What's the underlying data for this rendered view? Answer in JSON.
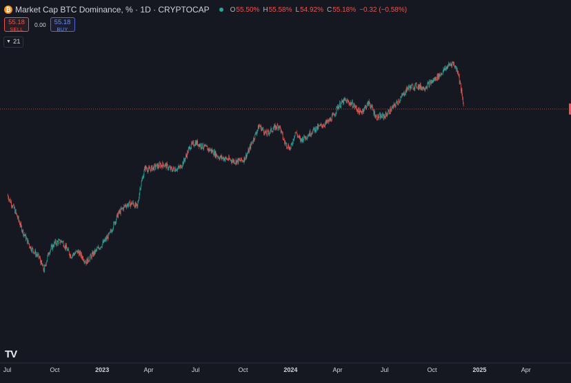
{
  "header": {
    "coin_icon": "bitcoin-icon",
    "title": "Market Cap BTC Dominance, % · 1D · CRYPTOCAP",
    "ohlc": [
      {
        "key": "O",
        "value": "55.50%"
      },
      {
        "key": "H",
        "value": "55.58%"
      },
      {
        "key": "L",
        "value": "54.92%"
      },
      {
        "key": "C",
        "value": "55.18%"
      },
      {
        "key": "",
        "value": "−0.32 (−0.58%)"
      }
    ]
  },
  "trade": {
    "sell_price": "55.18",
    "sell_label": "SELL",
    "spread": "0.00",
    "buy_price": "55.18",
    "buy_label": "BUY"
  },
  "indicators": {
    "toggle_label": "21"
  },
  "colors": {
    "background": "#161821",
    "up": "#26a69a",
    "down": "#ef5350",
    "price_line": "#ef5350",
    "axis_text": "#d1d4dc"
  },
  "chart_data": {
    "type": "candlestick",
    "x_tick_labels": [
      "Jul",
      "Oct",
      "2023",
      "Apr",
      "Jul",
      "Oct",
      "2024",
      "Apr",
      "Jul",
      "Oct",
      "2025",
      "Apr"
    ],
    "current_close": 55.18,
    "y_tick_labels": [],
    "series": [
      {
        "name": "BTC Dominance",
        "points": [
          [
            "2022-07-01",
            47.0
          ],
          [
            "2022-07-15",
            45.6
          ],
          [
            "2022-08-01",
            43.4
          ],
          [
            "2022-08-15",
            42.0
          ],
          [
            "2022-09-01",
            41.0
          ],
          [
            "2022-09-10",
            39.8
          ],
          [
            "2022-09-20",
            41.6
          ],
          [
            "2022-10-01",
            42.4
          ],
          [
            "2022-10-15",
            42.6
          ],
          [
            "2022-11-01",
            41.2
          ],
          [
            "2022-11-15",
            41.6
          ],
          [
            "2022-12-01",
            40.6
          ],
          [
            "2022-12-15",
            41.4
          ],
          [
            "2023-01-01",
            42.3
          ],
          [
            "2023-01-15",
            43.2
          ],
          [
            "2023-02-01",
            45.2
          ],
          [
            "2023-02-15",
            46.0
          ],
          [
            "2023-03-01",
            46.2
          ],
          [
            "2023-03-10",
            45.8
          ],
          [
            "2023-03-15",
            47.6
          ],
          [
            "2023-03-25",
            49.6
          ],
          [
            "2023-04-01",
            49.4
          ],
          [
            "2023-04-15",
            49.7
          ],
          [
            "2023-05-01",
            49.9
          ],
          [
            "2023-05-15",
            49.4
          ],
          [
            "2023-06-01",
            49.6
          ],
          [
            "2023-06-10",
            50.4
          ],
          [
            "2023-06-20",
            51.6
          ],
          [
            "2023-07-01",
            52.0
          ],
          [
            "2023-07-15",
            51.6
          ],
          [
            "2023-08-01",
            51.2
          ],
          [
            "2023-08-15",
            50.6
          ],
          [
            "2023-09-01",
            50.4
          ],
          [
            "2023-09-15",
            50.2
          ],
          [
            "2023-10-01",
            50.3
          ],
          [
            "2023-10-10",
            51.0
          ],
          [
            "2023-10-20",
            52.2
          ],
          [
            "2023-11-01",
            53.6
          ],
          [
            "2023-11-15",
            52.8
          ],
          [
            "2023-12-01",
            53.4
          ],
          [
            "2023-12-10",
            53.6
          ],
          [
            "2023-12-20",
            52.0
          ],
          [
            "2024-01-01",
            51.4
          ],
          [
            "2024-01-10",
            53.0
          ],
          [
            "2024-01-20",
            52.2
          ],
          [
            "2024-02-01",
            52.6
          ],
          [
            "2024-02-15",
            53.2
          ],
          [
            "2024-03-01",
            53.6
          ],
          [
            "2024-03-15",
            54.0
          ],
          [
            "2024-03-25",
            54.6
          ],
          [
            "2024-04-01",
            55.4
          ],
          [
            "2024-04-15",
            56.0
          ],
          [
            "2024-05-01",
            55.6
          ],
          [
            "2024-05-15",
            54.8
          ],
          [
            "2024-06-01",
            55.8
          ],
          [
            "2024-06-15",
            54.4
          ],
          [
            "2024-07-01",
            54.5
          ],
          [
            "2024-07-15",
            55.2
          ],
          [
            "2024-08-01",
            56.2
          ],
          [
            "2024-08-15",
            57.2
          ],
          [
            "2024-09-01",
            57.4
          ],
          [
            "2024-09-15",
            57.2
          ],
          [
            "2024-10-01",
            57.8
          ],
          [
            "2024-10-15",
            58.4
          ],
          [
            "2024-11-01",
            59.3
          ],
          [
            "2024-11-10",
            59.6
          ],
          [
            "2024-11-20",
            58.8
          ],
          [
            "2024-11-25",
            57.4
          ],
          [
            "2024-12-01",
            55.5
          ]
        ]
      }
    ]
  }
}
